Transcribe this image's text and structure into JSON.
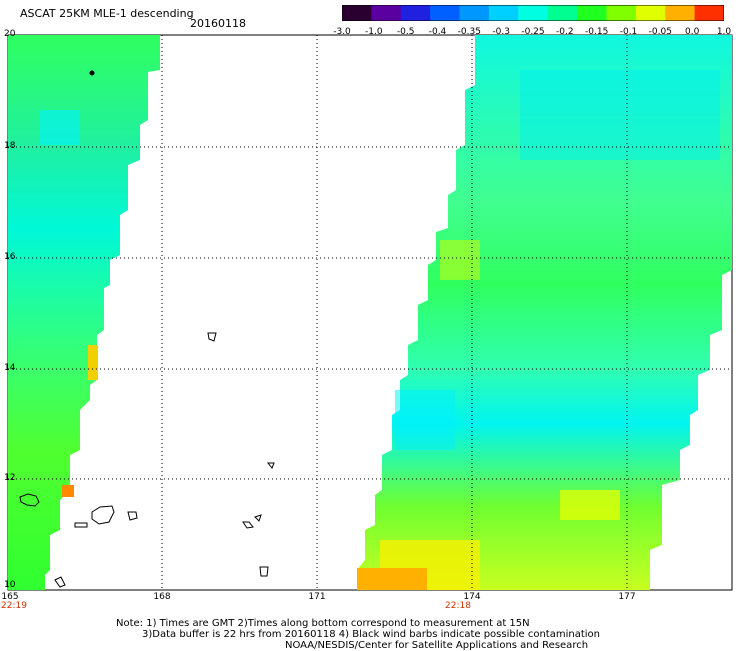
{
  "header": {
    "title": "ASCAT 25KM MLE-1 descending",
    "date": "20160118"
  },
  "colorbar": {
    "labels": [
      "-3.0",
      "-1.0",
      "-0.5",
      "-0.4",
      "-0.35",
      "-0.3",
      "-0.25",
      "-0.2",
      "-0.15",
      "-0.1",
      "-0.05",
      "0.0",
      "1.0"
    ],
    "colors": [
      "#2a0030",
      "#5a00a0",
      "#2020e0",
      "#0060ff",
      "#0098ff",
      "#00d0ff",
      "#00ffe0",
      "#00ff90",
      "#20ff20",
      "#80ff00",
      "#e0ff00",
      "#ffb000",
      "#ff3000"
    ]
  },
  "axes": {
    "lat_labels": [
      "20",
      "18",
      "16",
      "14",
      "12",
      "10"
    ],
    "lon_labels": [
      "165",
      "168",
      "171",
      "174",
      "177"
    ],
    "times": [
      "22:19",
      "22:18"
    ]
  },
  "notes": {
    "line1": "Note: 1) Times are GMT 2)Times along bottom correspond to measurement at 15N",
    "line2": "3)Data buffer is 22 hrs from 20160118 4) Black wind barbs indicate possible contamination",
    "line3": "NOAA/NESDIS/Center for Satellite Applications and Research"
  }
}
